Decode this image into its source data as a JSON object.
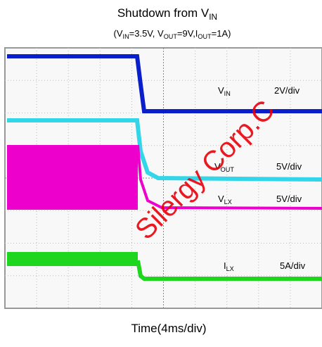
{
  "title": {
    "text": "Shutdown from V",
    "sub": "IN"
  },
  "subtitle": [
    "(V",
    "IN",
    "=3.5V, V",
    "OUT",
    "=9V,I",
    "OUT",
    "=1A)"
  ],
  "channels": [
    {
      "name": "V",
      "sub": "IN",
      "scale": "2V/div"
    },
    {
      "name": "V",
      "sub": "OUT",
      "scale": "5V/div"
    },
    {
      "name": "V",
      "sub": "LX",
      "scale": "5V/div"
    },
    {
      "name": "I",
      "sub": "LX",
      "scale": "5A/div"
    }
  ],
  "time_scale": "Time(4ms/div)",
  "watermark": "Silergy Corp.C"
}
